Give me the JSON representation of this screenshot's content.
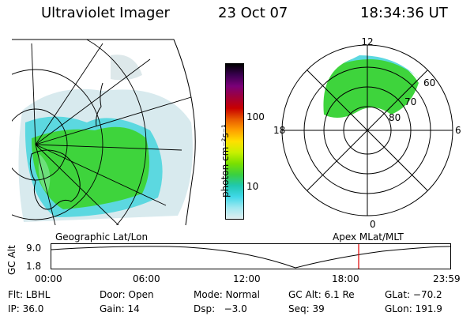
{
  "header": {
    "instrument": "Ultraviolet Imager",
    "date": "23 Oct 07",
    "time": "18:34:36 UT"
  },
  "colorbar": {
    "unit_label": "photon cm⁻²s⁻¹",
    "ticks": [
      "100",
      "10"
    ],
    "colors": [
      "#000000",
      "#3a0050",
      "#7a0078",
      "#a0003a",
      "#c80000",
      "#e85a00",
      "#ffa000",
      "#ffe000",
      "#c8f000",
      "#7ae000",
      "#3ad040",
      "#20c8b0",
      "#40d8e8",
      "#a0e8f0",
      "#e0eef0"
    ]
  },
  "polar": {
    "mlt_labels": [
      "12",
      "18",
      "6",
      "0"
    ],
    "lat_labels": [
      "60",
      "70",
      "80"
    ]
  },
  "panel_labels": {
    "left": "Geographic Lat/Lon",
    "right": "Apex MLat/MLT"
  },
  "alt_plot": {
    "ylabel": "GC Alt",
    "y_ticks": [
      "9.0",
      "1.8"
    ],
    "x_ticks": [
      "00:00",
      "06:00",
      "12:00",
      "18:00",
      "23:59"
    ],
    "marker_color": "#e00000"
  },
  "footer": {
    "row1": {
      "flt": "Flt: LBHL",
      "door": "Door: Open",
      "mode": "Mode: Normal",
      "gcalt": "GC Alt: 6.1 Re",
      "glat": "GLat: −70.2"
    },
    "row2": {
      "ip": "IP: 36.0",
      "gain": "Gain: 14",
      "dsp": "Dsp:   −3.0",
      "seq": "Seq: 39",
      "glon": "GLon: 191.9"
    }
  }
}
